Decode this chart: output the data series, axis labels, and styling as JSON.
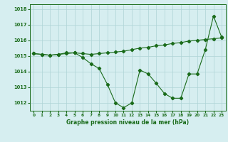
{
  "xlabel": "Graphe pression niveau de la mer (hPa)",
  "ylim": [
    1011.5,
    1018.3
  ],
  "xlim": [
    -0.5,
    23.5
  ],
  "yticks": [
    1012,
    1013,
    1014,
    1015,
    1016,
    1017,
    1018
  ],
  "xticks": [
    0,
    1,
    2,
    3,
    4,
    5,
    6,
    7,
    8,
    9,
    10,
    11,
    12,
    13,
    14,
    15,
    16,
    17,
    18,
    19,
    20,
    21,
    22,
    23
  ],
  "background_color": "#d6eef0",
  "grid_color": "#aed4d6",
  "line_color": "#1a6b1a",
  "series1_x": [
    0,
    1,
    2,
    3,
    4,
    5,
    6,
    7,
    8,
    9,
    10,
    11,
    12,
    13,
    14,
    15,
    16,
    17,
    18,
    19,
    20,
    21,
    22,
    23
  ],
  "series1_y": [
    1015.15,
    1015.1,
    1015.05,
    1015.1,
    1015.15,
    1015.2,
    1015.15,
    1015.1,
    1015.15,
    1015.2,
    1015.25,
    1015.3,
    1015.4,
    1015.5,
    1015.55,
    1015.65,
    1015.7,
    1015.8,
    1015.85,
    1015.95,
    1016.0,
    1016.05,
    1016.1,
    1016.15
  ],
  "series2_x": [
    0,
    1,
    2,
    3,
    4,
    5,
    6,
    7,
    8,
    9,
    10,
    11,
    12,
    13,
    14,
    15,
    16,
    17,
    18,
    19,
    20,
    21,
    22,
    23
  ],
  "series2_y": [
    1015.15,
    1015.1,
    1015.05,
    1015.1,
    1015.2,
    1015.2,
    1014.9,
    1014.5,
    1014.2,
    1013.2,
    1012.0,
    1011.7,
    1012.0,
    1014.1,
    1013.85,
    1013.25,
    1012.6,
    1012.3,
    1012.3,
    1013.85,
    1013.85,
    1015.4,
    1017.55,
    1016.2
  ]
}
